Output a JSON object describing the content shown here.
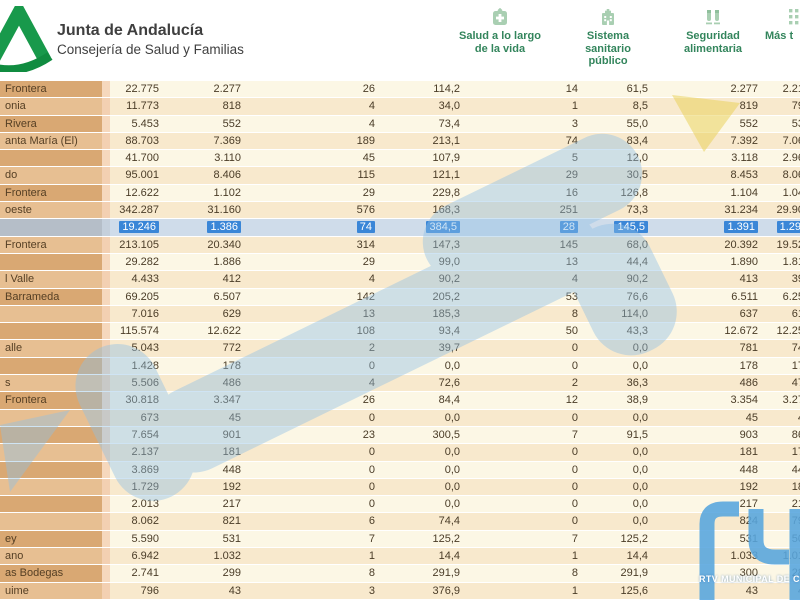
{
  "header": {
    "title": "Junta de Andalucía",
    "subtitle": "Consejería de Salud y Familias",
    "brand_green": "#18994b",
    "nav": [
      {
        "icon": "first-aid-guide-icon",
        "lines": [
          "Salud a lo largo",
          "de la vida"
        ]
      },
      {
        "icon": "hospital-icon",
        "lines": [
          "Sistema",
          "sanitario",
          "público"
        ]
      },
      {
        "icon": "food-safety-icon",
        "lines": [
          "Seguridad",
          "alimentaria"
        ]
      },
      {
        "icon": "more-topics-grid-icon",
        "lines": [
          "Más t"
        ]
      }
    ]
  },
  "table": {
    "selection_color": "#3a86d7",
    "rows": [
      {
        "name": "Frontera",
        "values": [
          "22.775",
          "2.277",
          "26",
          "114,2",
          "14",
          "61,5",
          "2.277",
          "2.21"
        ],
        "selected": false
      },
      {
        "name": "onia",
        "values": [
          "11.773",
          "818",
          "4",
          "34,0",
          "1",
          "8,5",
          "819",
          "79"
        ],
        "selected": false
      },
      {
        "name": "Rivera",
        "values": [
          "5.453",
          "552",
          "4",
          "73,4",
          "3",
          "55,0",
          "552",
          "53"
        ],
        "selected": false
      },
      {
        "name": "anta María (El)",
        "values": [
          "88.703",
          "7.369",
          "189",
          "213,1",
          "74",
          "83,4",
          "7.392",
          "7.06"
        ],
        "selected": false
      },
      {
        "name": "",
        "values": [
          "41.700",
          "3.110",
          "45",
          "107,9",
          "5",
          "12,0",
          "3.118",
          "2.96"
        ],
        "selected": false
      },
      {
        "name": "do",
        "values": [
          "95.001",
          "8.406",
          "115",
          "121,1",
          "29",
          "30,5",
          "8.453",
          "8.06"
        ],
        "selected": false
      },
      {
        "name": "Frontera",
        "values": [
          "12.622",
          "1.102",
          "29",
          "229,8",
          "16",
          "126,8",
          "1.104",
          "1.04"
        ],
        "selected": false
      },
      {
        "name": "oeste",
        "values": [
          "342.287",
          "31.160",
          "576",
          "168,3",
          "251",
          "73,3",
          "31.234",
          "29.90"
        ],
        "selected": false
      },
      {
        "name": "",
        "values": [
          "19.246",
          "1.386",
          "74",
          "384,5",
          "28",
          "145,5",
          "1.391",
          "1.29"
        ],
        "selected": true
      },
      {
        "name": "Frontera",
        "values": [
          "213.105",
          "20.340",
          "314",
          "147,3",
          "145",
          "68,0",
          "20.392",
          "19.52"
        ],
        "selected": false
      },
      {
        "name": "",
        "values": [
          "29.282",
          "1.886",
          "29",
          "99,0",
          "13",
          "44,4",
          "1.890",
          "1.81"
        ],
        "selected": false
      },
      {
        "name": "l Valle",
        "values": [
          "4.433",
          "412",
          "4",
          "90,2",
          "4",
          "90,2",
          "413",
          "39"
        ],
        "selected": false
      },
      {
        "name": "Barrameda",
        "values": [
          "69.205",
          "6.507",
          "142",
          "205,2",
          "53",
          "76,6",
          "6.511",
          "6.25"
        ],
        "selected": false
      },
      {
        "name": "",
        "values": [
          "7.016",
          "629",
          "13",
          "185,3",
          "8",
          "114,0",
          "637",
          "61"
        ],
        "selected": false
      },
      {
        "name": "",
        "values": [
          "115.574",
          "12.622",
          "108",
          "93,4",
          "50",
          "43,3",
          "12.672",
          "12.25"
        ],
        "selected": false
      },
      {
        "name": "alle",
        "values": [
          "5.043",
          "772",
          "2",
          "39,7",
          "0",
          "0,0",
          "781",
          "74"
        ],
        "selected": false
      },
      {
        "name": "",
        "values": [
          "1.428",
          "178",
          "0",
          "0,0",
          "0",
          "0,0",
          "178",
          "17"
        ],
        "selected": false
      },
      {
        "name": "s",
        "values": [
          "5.506",
          "486",
          "4",
          "72,6",
          "2",
          "36,3",
          "486",
          "47"
        ],
        "selected": false
      },
      {
        "name": "Frontera",
        "values": [
          "30.818",
          "3.347",
          "26",
          "84,4",
          "12",
          "38,9",
          "3.354",
          "3.27"
        ],
        "selected": false
      },
      {
        "name": "",
        "values": [
          "673",
          "45",
          "0",
          "0,0",
          "0",
          "0,0",
          "45",
          "4"
        ],
        "selected": false
      },
      {
        "name": "",
        "values": [
          "7.654",
          "901",
          "23",
          "300,5",
          "7",
          "91,5",
          "903",
          "86"
        ],
        "selected": false
      },
      {
        "name": "",
        "values": [
          "2.137",
          "181",
          "0",
          "0,0",
          "0",
          "0,0",
          "181",
          "17"
        ],
        "selected": false
      },
      {
        "name": "",
        "values": [
          "3.869",
          "448",
          "0",
          "0,0",
          "0",
          "0,0",
          "448",
          "44"
        ],
        "selected": false
      },
      {
        "name": "",
        "values": [
          "1.729",
          "192",
          "0",
          "0,0",
          "0",
          "0,0",
          "192",
          "18"
        ],
        "selected": false
      },
      {
        "name": "",
        "values": [
          "2.013",
          "217",
          "0",
          "0,0",
          "0",
          "0,0",
          "217",
          "21"
        ],
        "selected": false
      },
      {
        "name": "",
        "values": [
          "8.062",
          "821",
          "6",
          "74,4",
          "0",
          "0,0",
          "824",
          "79"
        ],
        "selected": false
      },
      {
        "name": "ey",
        "values": [
          "5.590",
          "531",
          "7",
          "125,2",
          "7",
          "125,2",
          "531",
          "50"
        ],
        "selected": false
      },
      {
        "name": "ano",
        "values": [
          "6.942",
          "1.032",
          "1",
          "14,4",
          "1",
          "14,4",
          "1.033",
          "1.01"
        ],
        "selected": false
      },
      {
        "name": "as Bodegas",
        "values": [
          "2.741",
          "299",
          "8",
          "291,9",
          "8",
          "291,9",
          "300",
          "28"
        ],
        "selected": false
      },
      {
        "name": "uime",
        "values": [
          "796",
          "43",
          "3",
          "376,9",
          "1",
          "125,6",
          "43",
          "4"
        ],
        "selected": false
      }
    ]
  },
  "watermark": {
    "label": "RTV MUNICIPAL DE C",
    "logo_blue": "#57a6df",
    "overlay_blue": "#8fc0e6",
    "overlay_yellow": "#e8cf52"
  }
}
